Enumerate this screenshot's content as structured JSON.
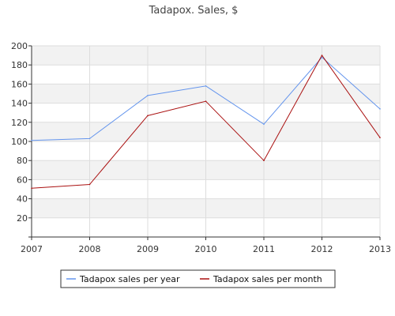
{
  "chart_data": {
    "type": "line",
    "title": "Tadapox. Sales, $",
    "xlabel": "",
    "ylabel": "",
    "x": [
      "2007",
      "2008",
      "2009",
      "2010",
      "2011",
      "2012",
      "2013"
    ],
    "xlim": [
      2007,
      2013
    ],
    "ylim": [
      0,
      200
    ],
    "yticks": [
      20,
      40,
      60,
      80,
      100,
      120,
      140,
      160,
      180,
      200
    ],
    "grid": "horizontal and vertical",
    "legend_position": "bottom",
    "series": [
      {
        "name": "Tadapox sales per year",
        "color": "#6495ed",
        "values": [
          101,
          103,
          148,
          158,
          118,
          188,
          134
        ]
      },
      {
        "name": "Tadapox sales per month",
        "color": "#aa1111",
        "values": [
          51,
          55,
          127,
          142,
          80,
          190,
          104
        ]
      }
    ]
  }
}
